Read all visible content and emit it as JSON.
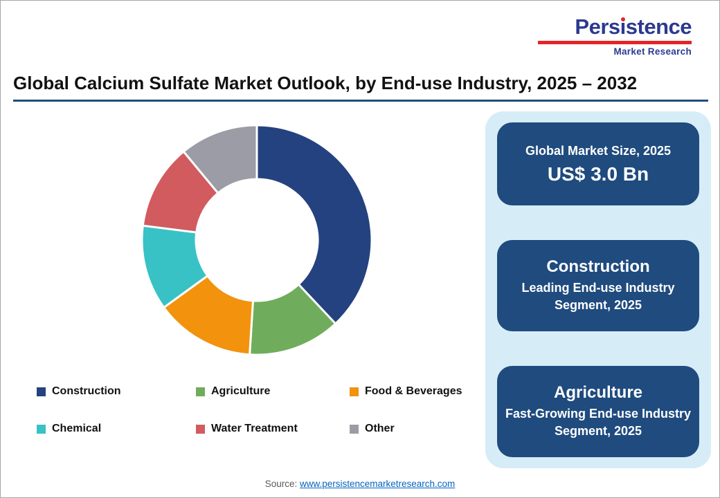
{
  "meta": {
    "title": "Global Calcium Sulfate Market Outlook, by End-use Industry, 2025 – 2032",
    "source_prefix": "Source: ",
    "source_link": "www.persistencemarketresearch.com"
  },
  "logo": {
    "name_pre": "Pers",
    "name_i": "ı",
    "name_post": "stence",
    "subtitle": "Market Research"
  },
  "colors": {
    "brand-navy": "#2B3990",
    "brand-red": "#E42528",
    "rule-navy": "#1F4E79",
    "panel-bg": "#D6EDF8",
    "card-bg": "#1F4B7E",
    "link-blue": "#0563C1"
  },
  "chart_data": {
    "type": "pie",
    "donut": true,
    "title": "Global Calcium Sulfate Market Outlook, by End-use Industry, 2025 – 2032",
    "categories": [
      "Construction",
      "Agriculture",
      "Food & Beverages",
      "Chemical",
      "Water Treatment",
      "Other"
    ],
    "values": [
      38,
      13,
      14,
      12,
      12,
      11
    ],
    "unit": "%",
    "colors": [
      "#24427F",
      "#6FAD5C",
      "#F2920D",
      "#38C2C6",
      "#D15B5F",
      "#9C9CA6"
    ],
    "start_angle_deg": -90,
    "direction": "clockwise",
    "inner_radius_ratio": 0.52,
    "legend_position": "bottom"
  },
  "panel": {
    "cards": [
      {
        "line1": "Global Market Size, 2025",
        "line2": "US$ 3.0 Bn"
      },
      {
        "line1": "Construction",
        "line2": "Leading End-use Industry Segment, 2025"
      },
      {
        "line1": "Agriculture",
        "line2": "Fast-Growing End-use Industry Segment, 2025"
      }
    ]
  }
}
